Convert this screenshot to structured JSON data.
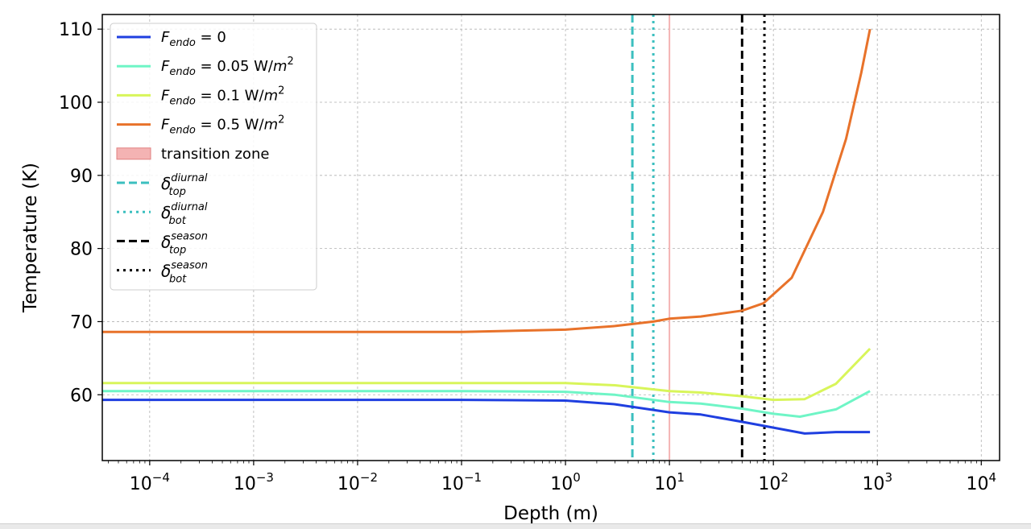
{
  "chart_data": {
    "type": "line",
    "title": "",
    "xlabel": "Depth (m)",
    "ylabel": "Temperature (K)",
    "xscale": "log",
    "xlim": [
      3.5e-05,
      15000
    ],
    "ylim": [
      51,
      112
    ],
    "grid": true,
    "legend_position": "upper-left",
    "x_ticks": [
      {
        "value": 0.0001,
        "base": "10",
        "exp": "−4"
      },
      {
        "value": 0.001,
        "base": "10",
        "exp": "−3"
      },
      {
        "value": 0.01,
        "base": "10",
        "exp": "−2"
      },
      {
        "value": 0.1,
        "base": "10",
        "exp": "−1"
      },
      {
        "value": 1,
        "base": "10",
        "exp": "0"
      },
      {
        "value": 10,
        "base": "10",
        "exp": "1"
      },
      {
        "value": 100,
        "base": "10",
        "exp": "2"
      },
      {
        "value": 1000,
        "base": "10",
        "exp": "3"
      },
      {
        "value": 10000,
        "base": "10",
        "exp": "4"
      }
    ],
    "y_ticks": [
      60,
      70,
      80,
      90,
      100,
      110
    ],
    "series": [
      {
        "name_base": "F",
        "name_sub": "endo",
        "name_rest": " = 0",
        "name_sup": "",
        "color": "#1f3fe0",
        "points": [
          [
            3.5e-05,
            59.3
          ],
          [
            0.1,
            59.3
          ],
          [
            1,
            59.2
          ],
          [
            3,
            58.7
          ],
          [
            10,
            57.6
          ],
          [
            20,
            57.3
          ],
          [
            50,
            56.3
          ],
          [
            100,
            55.5
          ],
          [
            200,
            54.7
          ],
          [
            400,
            54.9
          ],
          [
            850,
            54.9
          ]
        ]
      },
      {
        "name_base": "F",
        "name_sub": "endo",
        "name_rest": " = 0.05 W/m",
        "name_sup": "2",
        "color": "#6ff5c6",
        "points": [
          [
            3.5e-05,
            60.5
          ],
          [
            0.1,
            60.5
          ],
          [
            1,
            60.4
          ],
          [
            3,
            60.0
          ],
          [
            10,
            59.0
          ],
          [
            20,
            58.8
          ],
          [
            50,
            58.1
          ],
          [
            100,
            57.4
          ],
          [
            180,
            57.0
          ],
          [
            400,
            58.0
          ],
          [
            850,
            60.5
          ]
        ]
      },
      {
        "name_base": "F",
        "name_sub": "endo",
        "name_rest": " = 0.1 W/m",
        "name_sup": "2",
        "color": "#d8f55a",
        "points": [
          [
            3.5e-05,
            61.6
          ],
          [
            0.1,
            61.6
          ],
          [
            1,
            61.6
          ],
          [
            3,
            61.3
          ],
          [
            10,
            60.5
          ],
          [
            20,
            60.3
          ],
          [
            50,
            59.8
          ],
          [
            100,
            59.3
          ],
          [
            200,
            59.4
          ],
          [
            400,
            61.5
          ],
          [
            850,
            66.3
          ]
        ]
      },
      {
        "name_base": "F",
        "name_sub": "endo",
        "name_rest": " = 0.5 W/m",
        "name_sup": "2",
        "color": "#e8722a",
        "points": [
          [
            3.5e-05,
            68.6
          ],
          [
            0.1,
            68.6
          ],
          [
            1,
            68.9
          ],
          [
            3,
            69.4
          ],
          [
            7,
            70.0
          ],
          [
            10,
            70.4
          ],
          [
            20,
            70.7
          ],
          [
            50,
            71.5
          ],
          [
            80,
            72.5
          ],
          [
            150,
            76.0
          ],
          [
            300,
            85.0
          ],
          [
            500,
            95.0
          ],
          [
            700,
            104.0
          ],
          [
            850,
            110.0
          ]
        ]
      }
    ],
    "transition_zone": {
      "label": "transition zone",
      "x": 10,
      "color": "#f4b3b3"
    },
    "vlines": [
      {
        "name_base": "δ",
        "name_sub": "top",
        "name_sup": "diurnal",
        "x": 4.4,
        "style": "dashed",
        "color": "#3bbfbf"
      },
      {
        "name_base": "δ",
        "name_sub": "bot",
        "name_sup": "diurnal",
        "x": 7,
        "style": "dotted",
        "color": "#3bbfbf"
      },
      {
        "name_base": "δ",
        "name_sub": "top",
        "name_sup": "season",
        "x": 50,
        "style": "dashed",
        "color": "#000000"
      },
      {
        "name_base": "δ",
        "name_sub": "bot",
        "name_sup": "season",
        "x": 82,
        "style": "dotted",
        "color": "#000000"
      }
    ]
  }
}
